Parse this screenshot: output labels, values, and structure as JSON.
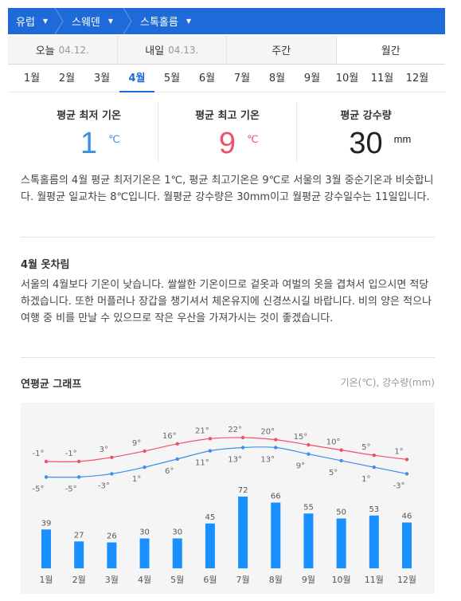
{
  "breadcrumb": [
    {
      "label": "유럽"
    },
    {
      "label": "스웨덴"
    },
    {
      "label": "스톡홀름"
    }
  ],
  "tabs": [
    {
      "label": "오늘",
      "date": "04.12."
    },
    {
      "label": "내일",
      "date": "04.13."
    },
    {
      "label": "주간",
      "date": ""
    },
    {
      "label": "월간",
      "date": ""
    }
  ],
  "months": [
    "1월",
    "2월",
    "3월",
    "4월",
    "5월",
    "6월",
    "7월",
    "8월",
    "9월",
    "10월",
    "11월",
    "12월"
  ],
  "selected_month": "4월",
  "stats": {
    "min": {
      "title": "평균 최저 기온",
      "value": "1",
      "unit": "℃"
    },
    "max": {
      "title": "평균 최고 기온",
      "value": "9",
      "unit": "℃"
    },
    "rain": {
      "title": "평균 강수량",
      "value": "30",
      "unit": "mm"
    }
  },
  "description": "스톡홀름의 4월 평균 최저기온은 1℃, 평균 최고기온은 9℃로 서울의 3월 중순기온과 비슷합니다. 월평균 일교차는 8℃입니다. 월평균 강수량은 30mm이고 월평균 강수일수는 11일입니다.",
  "outfit": {
    "title": "4월 옷차림",
    "text": "서울의 4월보다 기온이 낮습니다. 쌀쌀한 기온이므로 겉옷과 여벌의 옷을 겹쳐서 입으시면 적당하겠습니다. 또한 머플러나 장갑을 챙기셔서 체온유지에 신경쓰시길 바랍니다. 비의 양은 적으나 여행 중 비를 만날 수 있으므로 작은 우산을 가져가시는 것이 좋겠습니다."
  },
  "graph": {
    "title": "연평균 그래프",
    "units": "기온(℃), 강수량(mm)"
  },
  "colors": {
    "accent": "#1e6ad8",
    "max_line": "#f0516a",
    "min_line": "#3c8ee6",
    "bars": "#1a90ff"
  },
  "chart_data": {
    "type": "line+bar",
    "categories": [
      "1월",
      "2월",
      "3월",
      "4월",
      "5월",
      "6월",
      "7월",
      "8월",
      "9월",
      "10월",
      "11월",
      "12월"
    ],
    "series": [
      {
        "values": [
          -1,
          -1,
          3,
          9,
          16,
          21,
          22,
          20,
          15,
          10,
          5,
          1
        ]
      },
      {
        "values": [
          -5,
          -5,
          -3,
          1,
          6,
          11,
          13,
          13,
          9,
          5,
          1,
          -3
        ]
      },
      {
        "values": [
          39,
          27,
          26,
          30,
          30,
          45,
          72,
          66,
          55,
          50,
          53,
          46
        ]
      }
    ]
  }
}
